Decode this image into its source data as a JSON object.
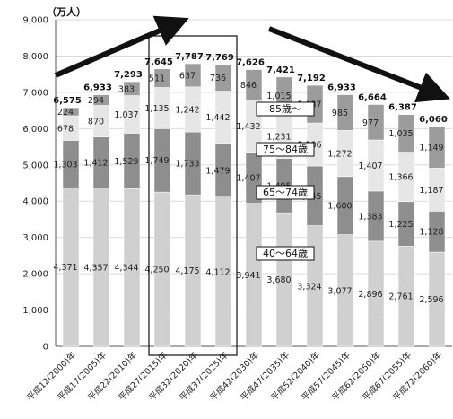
{
  "chart_data": {
    "type": "bar",
    "stacked": true,
    "unit": "（万人）",
    "ylim": [
      0,
      9000
    ],
    "yticks": [
      "0",
      "1,000",
      "2,000",
      "3,000",
      "4,000",
      "5,000",
      "6,000",
      "7,000",
      "8,000",
      "9,000"
    ],
    "grid": true,
    "categories": [
      "平成12(2000)年",
      "平成17(2005)年",
      "平成22(2010)年",
      "平成27(2015)年",
      "平成32(2020)年",
      "平成37(2025)年",
      "平成42(2030)年",
      "平成47(2035)年",
      "平成52(2040)年",
      "平成57(2045)年",
      "平成62(2050)年",
      "平成67(2055)年",
      "平成72(2060)年"
    ],
    "series": [
      {
        "name": "40〜64歳",
        "color": "#d0d0d0",
        "values": [
          4371,
          4357,
          4344,
          4250,
          4175,
          4112,
          3941,
          3680,
          3324,
          3077,
          2896,
          2761,
          2596
        ],
        "labels": [
          "4,371",
          "4,357",
          "4,344",
          "4,250",
          "4,175",
          "4,112",
          "3,941",
          "3,680",
          "3,324",
          "3,077",
          "2,896",
          "2,761",
          "2,596"
        ]
      },
      {
        "name": "65〜74歳",
        "color": "#8e8e8e",
        "values": [
          1303,
          1412,
          1529,
          1749,
          1733,
          1479,
          1407,
          1495,
          1645,
          1600,
          1383,
          1225,
          1128
        ],
        "labels": [
          "1,303",
          "1,412",
          "1,529",
          "1,749",
          "1,733",
          "1,479",
          "1,407",
          "1,495",
          "1,645",
          "1,600",
          "1,383",
          "1,225",
          "1,128"
        ]
      },
      {
        "name": "75〜84歳",
        "color": "#e6e6e6",
        "values": [
          678,
          870,
          1037,
          1135,
          1242,
          1442,
          1432,
          1231,
          1186,
          1272,
          1407,
          1366,
          1187
        ],
        "labels": [
          "678",
          "870",
          "1,037",
          "1,135",
          "1,242",
          "1,442",
          "1,432",
          "1,231",
          "1,186",
          "1,272",
          "1,407",
          "1,366",
          "1,187"
        ]
      },
      {
        "name": "85歳〜",
        "color": "#9c9c9c",
        "values": [
          224,
          294,
          383,
          511,
          637,
          736,
          846,
          1015,
          1037,
          985,
          977,
          1035,
          1149
        ],
        "labels": [
          "224",
          "294",
          "383",
          "511",
          "637",
          "736",
          "846",
          "1,015",
          "1,037",
          "985",
          "977",
          "1,035",
          "1,149"
        ]
      }
    ],
    "totals": [
      6575,
      6933,
      7293,
      7645,
      7787,
      7769,
      7626,
      7421,
      7192,
      6933,
      6664,
      6387,
      6060
    ],
    "total_labels": [
      "6,575",
      "6,933",
      "7,293",
      "7,645",
      "7,787",
      "7,769",
      "7,626",
      "7,421",
      "7,192",
      "6,933",
      "6,664",
      "6,387",
      "6,060"
    ],
    "highlight_categories": [
      "平成27(2015)年",
      "平成32(2020)年",
      "平成37(2025)年"
    ],
    "legend_placement": "inside-center"
  }
}
